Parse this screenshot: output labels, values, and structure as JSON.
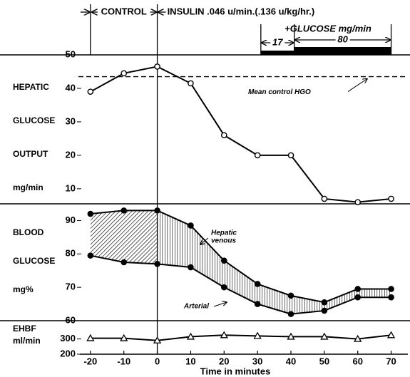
{
  "header": {
    "control": {
      "label": "CONTROL",
      "x": [
        -20,
        0
      ]
    },
    "insulin": {
      "label": "INSULIN .046 u/min.(.136 u/kg/hr.)",
      "x": [
        0,
        75
      ]
    },
    "glucose": {
      "label": "+GLUCOSE mg/min",
      "segments": [
        {
          "rate": 17,
          "x": [
            31,
            41
          ]
        },
        {
          "rate": 80,
          "x": [
            41,
            70
          ]
        }
      ]
    }
  },
  "chart_data": [
    {
      "type": "line",
      "ylabel": [
        "HEPATIC",
        "GLUCOSE",
        "OUTPUT",
        "mg/min"
      ],
      "x": [
        -20,
        -10,
        0,
        10,
        20,
        30,
        40,
        50,
        60,
        70
      ],
      "series": [
        {
          "color": "#000000",
          "marker": "circle",
          "marker_fill": "#ffffff",
          "values": [
            39,
            44.5,
            46.5,
            41.5,
            26,
            20,
            20,
            7,
            6,
            7
          ]
        }
      ],
      "xlim": [
        -30,
        75
      ],
      "ylim": [
        5.5,
        50
      ],
      "yticks": [
        10,
        20,
        30,
        40,
        50
      ],
      "reference_line": {
        "value": 43.5,
        "label": "Mean control HGO",
        "style": "dashed"
      }
    },
    {
      "type": "line",
      "ylabel": [
        "BLOOD",
        "GLUCOSE",
        "mg%"
      ],
      "x": [
        -20,
        -10,
        0,
        10,
        20,
        30,
        40,
        50,
        60,
        70
      ],
      "series": [
        {
          "label_lines": [
            "Hepatic",
            "venous"
          ],
          "color": "#000000",
          "marker": "circle",
          "marker_fill": "#000000",
          "values": [
            92,
            93,
            93,
            88.5,
            78,
            71,
            67.5,
            65.5,
            69.5,
            69.5
          ]
        },
        {
          "label_lines": [
            "Arterial"
          ],
          "color": "#000000",
          "marker": "circle",
          "marker_fill": "#000000",
          "values": [
            79.5,
            77.5,
            77,
            76,
            70,
            65,
            62,
            63,
            67,
            67
          ]
        }
      ],
      "fill_between": true,
      "xlim": [
        -30,
        75
      ],
      "ylim": [
        60,
        95
      ],
      "yticks": [
        60,
        70,
        80,
        90
      ]
    },
    {
      "type": "line",
      "ylabel": [
        "EHBF",
        "ml/min"
      ],
      "x": [
        -20,
        -10,
        0,
        10,
        20,
        30,
        40,
        50,
        60,
        70
      ],
      "series": [
        {
          "color": "#000000",
          "marker": "triangle",
          "marker_fill": "#ffffff",
          "values": [
            305,
            305,
            290,
            315,
            325,
            320,
            315,
            315,
            300,
            325
          ]
        }
      ],
      "xlim": [
        -30,
        75
      ],
      "ylim": [
        200,
        420
      ],
      "yticks": [
        200,
        300
      ],
      "xticks": [
        -20,
        -10,
        0,
        10,
        20,
        30,
        40,
        50,
        60,
        70
      ],
      "xlabel": "Time in minutes"
    }
  ]
}
